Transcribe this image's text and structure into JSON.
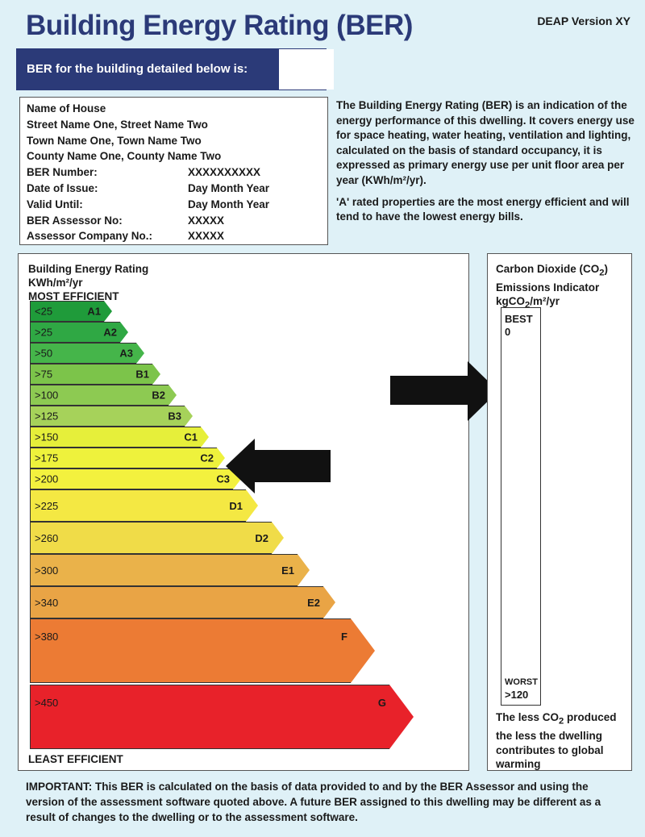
{
  "header": {
    "title": "Building Energy Rating (BER)",
    "version": "DEAP Version XY",
    "ber_label": "BER for the building detailed below is:"
  },
  "details": {
    "address": [
      "Name of House",
      "Street Name One, Street Name Two",
      "Town Name One, Town Name Two",
      "County Name One, County Name Two"
    ],
    "rows": [
      {
        "label": "BER Number:",
        "value": "XXXXXXXXXX"
      },
      {
        "label": "Date of Issue:",
        "value": "Day Month Year"
      },
      {
        "label": "Valid Until:",
        "value": "Day Month Year"
      },
      {
        "label": "BER Assessor No:",
        "value": "XXXXX"
      },
      {
        "label": "Assessor Company No.:",
        "value": "XXXXX"
      }
    ]
  },
  "info": {
    "para1": "The Building Energy Rating (BER) is an indication of the energy performance of this dwelling. It covers energy use for space heating, water heating, ventilation and lighting, calculated on the basis of standard occupancy, it is expressed as primary energy use per unit floor area per year (KWh/m²/yr).",
    "para2": "'A' rated properties are the most energy efficient and will tend to have the lowest energy bills."
  },
  "rating": {
    "title_line1": "Building Energy Rating",
    "title_line2": "KWh/m²/yr",
    "most": "MOST EFFICIENT",
    "least": "LEAST EFFICIENT",
    "current_band": "C2",
    "bands": [
      {
        "range": "<25",
        "code": "A1",
        "color": "#1f9b3a"
      },
      {
        "range": ">25",
        "code": "A2",
        "color": "#2fa844"
      },
      {
        "range": ">50",
        "code": "A3",
        "color": "#45b54a"
      },
      {
        "range": ">75",
        "code": "B1",
        "color": "#7cc44a"
      },
      {
        "range": ">100",
        "code": "B2",
        "color": "#8dca52"
      },
      {
        "range": ">125",
        "code": "B3",
        "color": "#a6d25a"
      },
      {
        "range": ">150",
        "code": "C1",
        "color": "#e6ef3a"
      },
      {
        "range": ">175",
        "code": "C2",
        "color": "#eef23c"
      },
      {
        "range": ">200",
        "code": "C3",
        "color": "#f3f13e"
      },
      {
        "range": ">225",
        "code": "D1",
        "color": "#f4e843"
      },
      {
        "range": ">260",
        "code": "D2",
        "color": "#f0dc48"
      },
      {
        "range": ">300",
        "code": "E1",
        "color": "#eab24a"
      },
      {
        "range": ">340",
        "code": "E2",
        "color": "#e9a445"
      },
      {
        "range": ">380",
        "code": "F",
        "color": "#ec7b34"
      },
      {
        "range": ">450",
        "code": "G",
        "color": "#e8222a"
      }
    ]
  },
  "co2": {
    "title_line1": "Carbon Dioxide (CO",
    "title_line1_sub": "2",
    "title_line1_end": ")",
    "title_line2": "Emissions Indicator",
    "title_line3": "kgCO",
    "title_line3_sub": "2",
    "title_line3_end": "/m²/yr",
    "best_label": "BEST",
    "best_value": "0",
    "worst_label": "WORST",
    "worst_value": ">120",
    "note_a": "The less CO",
    "note_sub": "2",
    "note_b": " produced the less the dwelling contributes to global warming"
  },
  "important": "IMPORTANT: This BER is calculated on the basis of data provided to and by the BER Assessor and using the version of the assessment software quoted above. A future BER assigned to this dwelling may be different as a result of changes to the dwelling or to the assessment software.",
  "colors": {
    "brand": "#2b3a78",
    "background": "#dff1f7"
  }
}
